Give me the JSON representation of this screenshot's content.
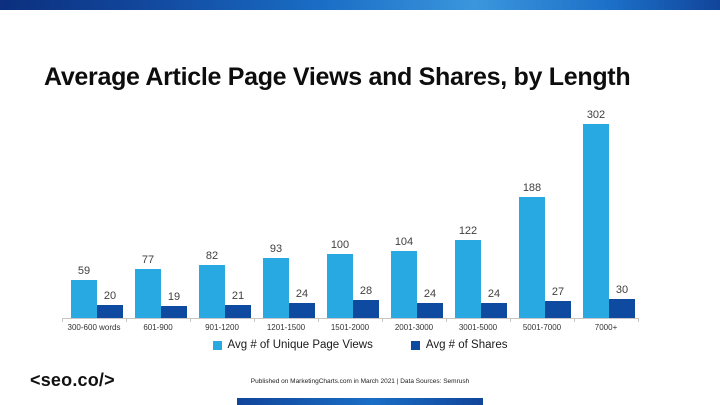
{
  "page": {
    "title": "Average Article Page Views and Shares, by Length"
  },
  "branding": {
    "logo_text": "<seo.co/>"
  },
  "footer": {
    "attribution": "Published on MarketingCharts.com in March 2021 | Data Sources: Semrush"
  },
  "colors": {
    "page_views_series": "#29a9e1",
    "shares_series": "#0d4aa0",
    "top_bar_blue": "#1a6ec6",
    "axis_gray": "#c6c6c6",
    "label_gray": "#3f3f3f"
  },
  "chart_data": {
    "type": "bar",
    "title": "Average Article Page Views and Shares, by Length",
    "categories": [
      "300-600 words",
      "601-900",
      "901-1200",
      "1201-1500",
      "1501-2000",
      "2001-3000",
      "3001-5000",
      "5001-7000",
      "7000+"
    ],
    "series": [
      {
        "name": "Avg # of Unique Page Views",
        "color": "#29a9e1",
        "values": [
          59,
          77,
          82,
          93,
          100,
          104,
          122,
          188,
          302
        ]
      },
      {
        "name": "Avg # of Shares",
        "color": "#0d4aa0",
        "values": [
          20,
          19,
          21,
          24,
          28,
          24,
          24,
          27,
          30
        ]
      }
    ],
    "xlabel": "",
    "ylabel": "",
    "ylim": [
      0,
      302
    ],
    "grid": false,
    "data_labels": true,
    "legend_position": "bottom"
  }
}
